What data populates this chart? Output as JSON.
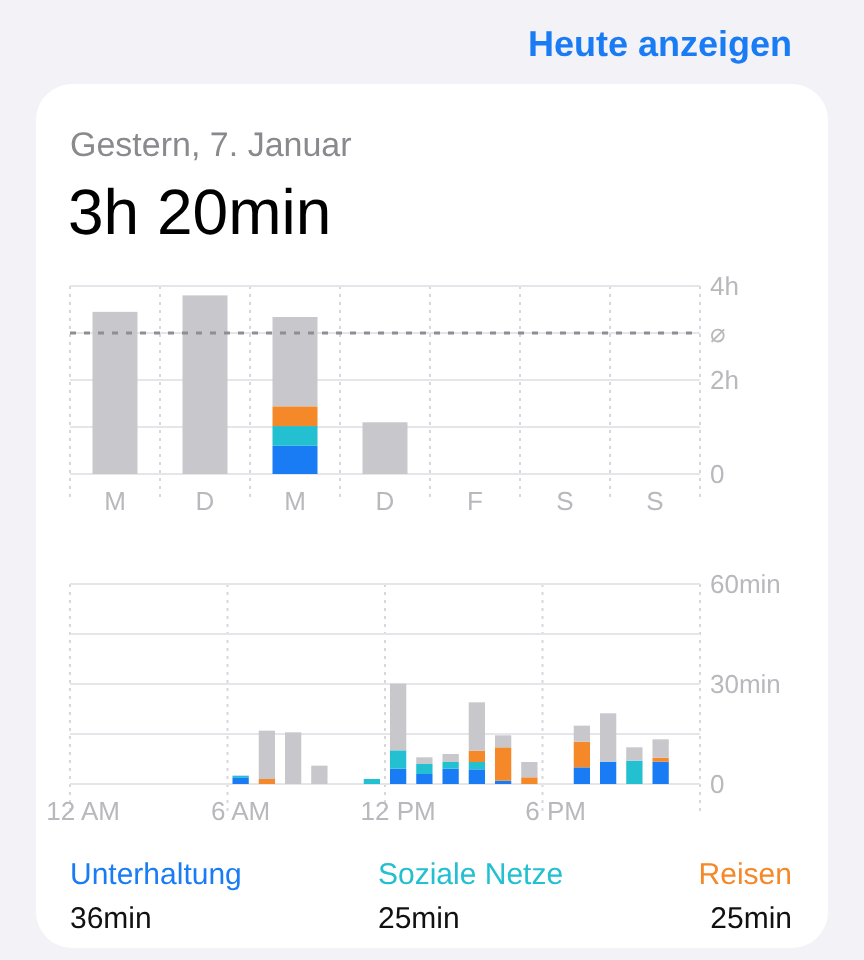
{
  "chart_data": [
    {
      "type": "bar",
      "title": "3h 20min",
      "subtitle": "Gestern, 7. Januar",
      "annotations": [
        "Heute anzeigen"
      ],
      "categories": [
        "M",
        "D",
        "M",
        "D",
        "F",
        "S",
        "S"
      ],
      "stacked": true,
      "series": [
        {
          "color": "#1a7cf5",
          "values": [
            null,
            null,
            0.6,
            null,
            null,
            null,
            null
          ]
        },
        {
          "color": "#22c0d0",
          "values": [
            null,
            null,
            0.42,
            null,
            null,
            null,
            null
          ]
        },
        {
          "color": "#f5892a",
          "values": [
            null,
            null,
            0.42,
            null,
            null,
            null,
            null
          ]
        },
        {
          "color": "#c7c7cc",
          "values": [
            3.45,
            3.8,
            1.9,
            1.1,
            null,
            null,
            null
          ]
        }
      ],
      "ylim": [
        0,
        4
      ],
      "yticks": [
        0,
        {
          "value": 1,
          "label": null
        },
        {
          "value": 2,
          "label": "2h"
        },
        {
          "value": 3,
          "label": null
        },
        {
          "value": 4,
          "label": "4h"
        }
      ],
      "ref_lines": [
        {
          "axis": "y",
          "value": 3,
          "label": "⌀",
          "color": "#8e8e93",
          "line_style": "dashed"
        }
      ],
      "grid": true,
      "legend": false
    },
    {
      "type": "bar",
      "categories": [
        "12 AM",
        null,
        null,
        null,
        null,
        null,
        "6 AM",
        null,
        null,
        null,
        null,
        null,
        "12 PM",
        null,
        null,
        null,
        null,
        null,
        "6 PM",
        null,
        null,
        null,
        null,
        null
      ],
      "stacked": true,
      "series": [
        {
          "name": "Unterhaltung",
          "color": "#1a7cf5",
          "values": [
            null,
            null,
            null,
            null,
            null,
            null,
            2,
            null,
            null,
            null,
            null,
            null,
            4.6,
            3,
            4.6,
            4.4,
            1,
            null,
            null,
            5,
            6.7,
            null,
            6.7,
            null
          ]
        },
        {
          "name": "Soziale Netze",
          "color": "#22c0d0",
          "values": [
            null,
            null,
            null,
            null,
            null,
            null,
            0.5,
            null,
            null,
            null,
            null,
            1.5,
            5.5,
            3,
            2,
            2.2,
            null,
            null,
            null,
            null,
            null,
            7,
            null,
            null
          ]
        },
        {
          "name": "Reisen",
          "color": "#f5892a",
          "values": [
            null,
            null,
            null,
            null,
            null,
            null,
            null,
            1.5,
            null,
            null,
            null,
            null,
            null,
            null,
            null,
            3.4,
            10,
            2,
            null,
            7.7,
            null,
            null,
            1.2,
            null
          ]
        },
        {
          "color": "#c7c7cc",
          "values": [
            null,
            null,
            null,
            null,
            null,
            null,
            null,
            14.5,
            15.5,
            5.5,
            null,
            null,
            20,
            2,
            2.4,
            14.5,
            3.6,
            4.6,
            null,
            4.8,
            14.5,
            4,
            5.5,
            null
          ]
        }
      ],
      "ylim": [
        0,
        60
      ],
      "yticks": [
        0,
        {
          "value": 15,
          "label": null
        },
        {
          "value": 30,
          "label": "30min"
        },
        {
          "value": 45,
          "label": null
        },
        {
          "value": 60,
          "label": "60min"
        }
      ],
      "annotations": [
        "36min",
        "25min",
        "25min"
      ],
      "grid": true,
      "legend": "bottom"
    }
  ]
}
